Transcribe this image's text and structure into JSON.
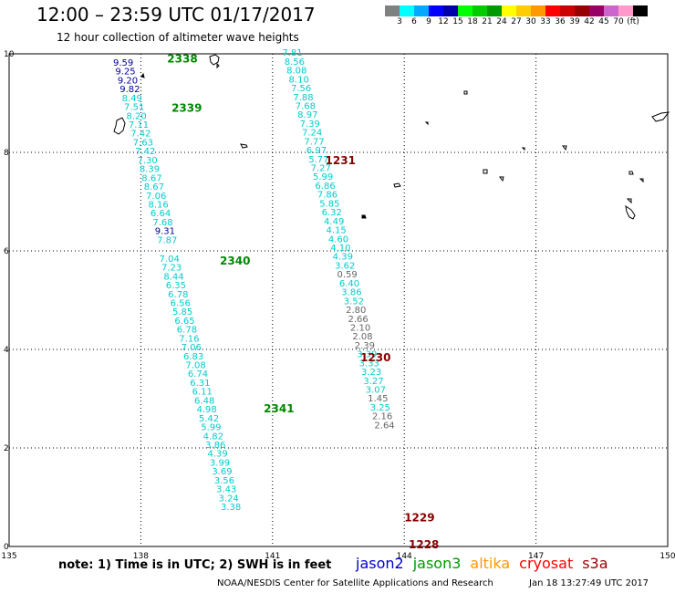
{
  "title": "12:00 – 23:59 UTC 01/17/2017",
  "subtitle": "12 hour collection of altimeter wave heights",
  "legend": {
    "colors": [
      "#808080",
      "#00ffff",
      "#00aaff",
      "#0000ff",
      "#0000aa",
      "#00ff00",
      "#00cc00",
      "#009900",
      "#ffff00",
      "#ffcc00",
      "#ff9900",
      "#ff0000",
      "#cc0000",
      "#990000",
      "#990066",
      "#cc66cc",
      "#ff99cc",
      "#000000"
    ],
    "ticks": [
      "3",
      "6",
      "9",
      "12",
      "15",
      "18",
      "21",
      "24",
      "27",
      "30",
      "33",
      "36",
      "39",
      "42",
      "45",
      "70",
      "(ft)"
    ]
  },
  "footer": {
    "note": "note:  1) Time is in UTC;  2) SWH is in feet",
    "satellites": [
      {
        "name": "jason2",
        "color": "#0000cc"
      },
      {
        "name": "jason3",
        "color": "#009900"
      },
      {
        "name": "altika",
        "color": "#ff9900"
      },
      {
        "name": "cryosat",
        "color": "#ff0000"
      },
      {
        "name": "s3a",
        "color": "#990000"
      }
    ],
    "credit": "NOAA/NESDIS Center for Satellite Applications and Research",
    "timestamp": "Jan 18 13:27:49 UTC 2017"
  },
  "chart_data": {
    "type": "scatter",
    "xlim": [
      135,
      150
    ],
    "ylim": [
      0,
      10
    ],
    "x_ticks": [
      "135",
      "138",
      "141",
      "144",
      "147",
      "150"
    ],
    "y_ticks": [
      "0",
      "2",
      "4",
      "6",
      "8",
      "10"
    ],
    "grid": true,
    "colors": {
      "cyan": "#00cccc",
      "navy": "#000099",
      "gray": "#666666",
      "green": "#008800",
      "maroon": "#880000"
    },
    "time_labels": [
      {
        "text": "2338",
        "lon": 138.6,
        "lat": 9.82,
        "color": "green"
      },
      {
        "text": "2339",
        "lon": 138.7,
        "lat": 8.82,
        "color": "green"
      },
      {
        "text": "2340",
        "lon": 139.8,
        "lat": 5.72,
        "color": "green"
      },
      {
        "text": "2341",
        "lon": 140.8,
        "lat": 2.72,
        "color": "green"
      },
      {
        "text": "1231",
        "lon": 142.2,
        "lat": 7.76,
        "color": "maroon"
      },
      {
        "text": "1230",
        "lon": 143.0,
        "lat": 3.76,
        "color": "maroon"
      },
      {
        "text": "1229",
        "lon": 144.0,
        "lat": 0.51,
        "color": "maroon"
      },
      {
        "text": "1228",
        "lon": 144.1,
        "lat": -0.04,
        "color": "maroon"
      }
    ],
    "tracks": [
      {
        "points": [
          {
            "lon": 137.6,
            "lat": 9.76,
            "swh": "9.59",
            "color": "navy"
          },
          {
            "lon": 137.65,
            "lat": 9.58,
            "swh": "9.25",
            "color": "navy"
          },
          {
            "lon": 137.7,
            "lat": 9.4,
            "swh": "9.20",
            "color": "navy"
          },
          {
            "lon": 137.75,
            "lat": 9.22,
            "swh": "9.82",
            "color": "navy"
          },
          {
            "lon": 137.8,
            "lat": 9.04,
            "swh": "8.49",
            "color": "cyan"
          },
          {
            "lon": 137.85,
            "lat": 8.86,
            "swh": "7.51",
            "color": "cyan"
          },
          {
            "lon": 137.9,
            "lat": 8.68,
            "swh": "8.20",
            "color": "cyan"
          },
          {
            "lon": 137.95,
            "lat": 8.5,
            "swh": "7.11",
            "color": "cyan"
          },
          {
            "lon": 138.0,
            "lat": 8.32,
            "swh": "7.42",
            "color": "cyan"
          },
          {
            "lon": 138.05,
            "lat": 8.14,
            "swh": "7.63",
            "color": "cyan"
          },
          {
            "lon": 138.1,
            "lat": 7.96,
            "swh": "7.42",
            "color": "cyan"
          },
          {
            "lon": 138.15,
            "lat": 7.78,
            "swh": "7.30",
            "color": "cyan"
          },
          {
            "lon": 138.2,
            "lat": 7.6,
            "swh": "8.39",
            "color": "cyan"
          },
          {
            "lon": 138.25,
            "lat": 7.42,
            "swh": "8.67",
            "color": "cyan"
          },
          {
            "lon": 138.3,
            "lat": 7.24,
            "swh": "8.67",
            "color": "cyan"
          },
          {
            "lon": 138.35,
            "lat": 7.06,
            "swh": "7.06",
            "color": "cyan"
          },
          {
            "lon": 138.4,
            "lat": 6.88,
            "swh": "8.16",
            "color": "cyan"
          },
          {
            "lon": 138.45,
            "lat": 6.7,
            "swh": "6.64",
            "color": "cyan"
          },
          {
            "lon": 138.5,
            "lat": 6.52,
            "swh": "7.68",
            "color": "cyan"
          },
          {
            "lon": 138.55,
            "lat": 6.34,
            "swh": "9.31",
            "color": "navy"
          },
          {
            "lon": 138.6,
            "lat": 6.16,
            "swh": "7.87",
            "color": "cyan"
          },
          {
            "lon": 138.65,
            "lat": 5.78,
            "swh": "7.04",
            "color": "cyan"
          },
          {
            "lon": 138.7,
            "lat": 5.6,
            "swh": "7.23",
            "color": "cyan"
          },
          {
            "lon": 138.75,
            "lat": 5.42,
            "swh": "8.44",
            "color": "cyan"
          },
          {
            "lon": 138.8,
            "lat": 5.24,
            "swh": "6.35",
            "color": "cyan"
          },
          {
            "lon": 138.85,
            "lat": 5.06,
            "swh": "6.78",
            "color": "cyan"
          },
          {
            "lon": 138.9,
            "lat": 4.88,
            "swh": "6.56",
            "color": "cyan"
          },
          {
            "lon": 138.95,
            "lat": 4.7,
            "swh": "5.85",
            "color": "cyan"
          },
          {
            "lon": 139.0,
            "lat": 4.52,
            "swh": "6.65",
            "color": "cyan"
          },
          {
            "lon": 139.05,
            "lat": 4.34,
            "swh": "6.78",
            "color": "cyan"
          },
          {
            "lon": 139.1,
            "lat": 4.16,
            "swh": "7.16",
            "color": "cyan"
          },
          {
            "lon": 139.15,
            "lat": 3.98,
            "swh": "7.06",
            "color": "cyan"
          },
          {
            "lon": 139.2,
            "lat": 3.8,
            "swh": "6.83",
            "color": "cyan"
          },
          {
            "lon": 139.25,
            "lat": 3.62,
            "swh": "7.08",
            "color": "cyan"
          },
          {
            "lon": 139.3,
            "lat": 3.44,
            "swh": "6.74",
            "color": "cyan"
          },
          {
            "lon": 139.35,
            "lat": 3.26,
            "swh": "6.31",
            "color": "cyan"
          },
          {
            "lon": 139.4,
            "lat": 3.08,
            "swh": "6.11",
            "color": "cyan"
          },
          {
            "lon": 139.45,
            "lat": 2.9,
            "swh": "6.48",
            "color": "cyan"
          },
          {
            "lon": 139.5,
            "lat": 2.72,
            "swh": "4.98",
            "color": "cyan"
          },
          {
            "lon": 139.55,
            "lat": 2.54,
            "swh": "5.42",
            "color": "cyan"
          },
          {
            "lon": 139.6,
            "lat": 2.36,
            "swh": "5.99",
            "color": "cyan"
          },
          {
            "lon": 139.65,
            "lat": 2.18,
            "swh": "4.82",
            "color": "cyan"
          },
          {
            "lon": 139.7,
            "lat": 2.0,
            "swh": "3.86",
            "color": "cyan"
          },
          {
            "lon": 139.75,
            "lat": 1.82,
            "swh": "4.39",
            "color": "cyan"
          },
          {
            "lon": 139.8,
            "lat": 1.64,
            "swh": "3.99",
            "color": "cyan"
          },
          {
            "lon": 139.85,
            "lat": 1.46,
            "swh": "3.69",
            "color": "cyan"
          },
          {
            "lon": 139.9,
            "lat": 1.28,
            "swh": "3.56",
            "color": "cyan"
          },
          {
            "lon": 139.95,
            "lat": 1.1,
            "swh": "3.43",
            "color": "cyan"
          },
          {
            "lon": 140.0,
            "lat": 0.92,
            "swh": "3.24",
            "color": "cyan"
          },
          {
            "lon": 140.05,
            "lat": 0.74,
            "swh": "3.38",
            "color": "cyan"
          }
        ]
      },
      {
        "points": [
          {
            "lon": 141.45,
            "lat": 9.96,
            "swh": "7.81",
            "color": "cyan"
          },
          {
            "lon": 141.5,
            "lat": 9.78,
            "swh": "8.56",
            "color": "cyan"
          },
          {
            "lon": 141.55,
            "lat": 9.6,
            "swh": "8.08",
            "color": "cyan"
          },
          {
            "lon": 141.6,
            "lat": 9.42,
            "swh": "8.10",
            "color": "cyan"
          },
          {
            "lon": 141.65,
            "lat": 9.24,
            "swh": "7.56",
            "color": "cyan"
          },
          {
            "lon": 141.7,
            "lat": 9.06,
            "swh": "7.88",
            "color": "cyan"
          },
          {
            "lon": 141.75,
            "lat": 8.88,
            "swh": "7.68",
            "color": "cyan"
          },
          {
            "lon": 141.8,
            "lat": 8.7,
            "swh": "8.97",
            "color": "cyan"
          },
          {
            "lon": 141.85,
            "lat": 8.52,
            "swh": "7.39",
            "color": "cyan"
          },
          {
            "lon": 141.9,
            "lat": 8.34,
            "swh": "7.24",
            "color": "cyan"
          },
          {
            "lon": 141.95,
            "lat": 8.16,
            "swh": "7.77",
            "color": "cyan"
          },
          {
            "lon": 142.0,
            "lat": 7.98,
            "swh": "6.97",
            "color": "cyan"
          },
          {
            "lon": 142.05,
            "lat": 7.8,
            "swh": "5.77",
            "color": "cyan"
          },
          {
            "lon": 142.1,
            "lat": 7.62,
            "swh": "7.27",
            "color": "cyan"
          },
          {
            "lon": 142.15,
            "lat": 7.44,
            "swh": "5.99",
            "color": "cyan"
          },
          {
            "lon": 142.2,
            "lat": 7.26,
            "swh": "6.86",
            "color": "cyan"
          },
          {
            "lon": 142.25,
            "lat": 7.08,
            "swh": "7.86",
            "color": "cyan"
          },
          {
            "lon": 142.3,
            "lat": 6.9,
            "swh": "5.85",
            "color": "cyan"
          },
          {
            "lon": 142.35,
            "lat": 6.72,
            "swh": "6.32",
            "color": "cyan"
          },
          {
            "lon": 142.4,
            "lat": 6.54,
            "swh": "4.49",
            "color": "cyan"
          },
          {
            "lon": 142.45,
            "lat": 6.36,
            "swh": "4.15",
            "color": "cyan"
          },
          {
            "lon": 142.5,
            "lat": 6.18,
            "swh": "4.60",
            "color": "cyan"
          },
          {
            "lon": 142.55,
            "lat": 6.0,
            "swh": "4.10",
            "color": "cyan"
          },
          {
            "lon": 142.6,
            "lat": 5.82,
            "swh": "4.39",
            "color": "cyan"
          },
          {
            "lon": 142.65,
            "lat": 5.64,
            "swh": "3.62",
            "color": "cyan"
          },
          {
            "lon": 142.7,
            "lat": 5.46,
            "swh": "0.59",
            "color": "gray"
          },
          {
            "lon": 142.75,
            "lat": 5.28,
            "swh": "6.40",
            "color": "cyan"
          },
          {
            "lon": 142.8,
            "lat": 5.1,
            "swh": "3.86",
            "color": "cyan"
          },
          {
            "lon": 142.85,
            "lat": 4.92,
            "swh": "3.52",
            "color": "cyan"
          },
          {
            "lon": 142.9,
            "lat": 4.74,
            "swh": "2.80",
            "color": "gray"
          },
          {
            "lon": 142.95,
            "lat": 4.56,
            "swh": "2.66",
            "color": "gray"
          },
          {
            "lon": 143.0,
            "lat": 4.38,
            "swh": "2.10",
            "color": "gray"
          },
          {
            "lon": 143.05,
            "lat": 4.2,
            "swh": "2.08",
            "color": "gray"
          },
          {
            "lon": 143.1,
            "lat": 4.02,
            "swh": "2.39",
            "color": "gray"
          },
          {
            "lon": 143.15,
            "lat": 3.84,
            "swh": "3.39",
            "color": "cyan"
          },
          {
            "lon": 143.2,
            "lat": 3.66,
            "swh": "3.33",
            "color": "cyan"
          },
          {
            "lon": 143.25,
            "lat": 3.48,
            "swh": "3.23",
            "color": "cyan"
          },
          {
            "lon": 143.3,
            "lat": 3.3,
            "swh": "3.27",
            "color": "cyan"
          },
          {
            "lon": 143.35,
            "lat": 3.12,
            "swh": "3.07",
            "color": "cyan"
          },
          {
            "lon": 143.4,
            "lat": 2.94,
            "swh": "1.45",
            "color": "gray"
          },
          {
            "lon": 143.45,
            "lat": 2.76,
            "swh": "3.25",
            "color": "cyan"
          },
          {
            "lon": 143.5,
            "lat": 2.58,
            "swh": "2.16",
            "color": "gray"
          },
          {
            "lon": 143.55,
            "lat": 2.4,
            "swh": "2.64",
            "color": "gray"
          }
        ]
      }
    ]
  }
}
